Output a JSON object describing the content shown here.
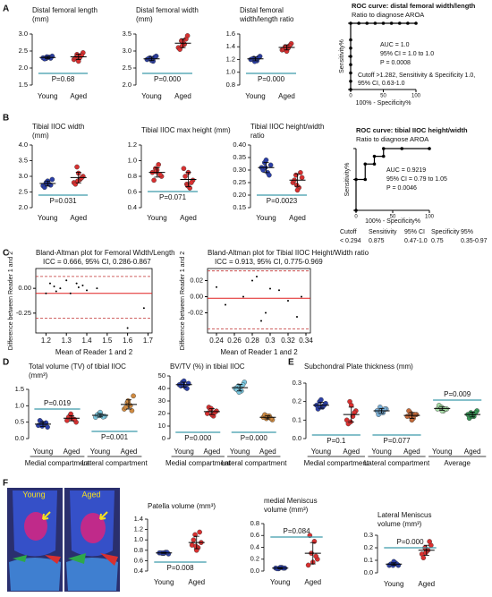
{
  "panel_labels": [
    "A",
    "B",
    "C",
    "D",
    "E",
    "F"
  ],
  "image": {
    "labels": [
      "Young",
      "Aged"
    ]
  },
  "chart_data": [
    {
      "type": "dotplot",
      "title": [
        "Distal femoral length",
        "(mm)"
      ],
      "ylim": [
        1.5,
        3
      ],
      "yticks": [
        1.5,
        {
          "value": 2,
          "label": "2.0"
        },
        2.5,
        {
          "value": 3,
          "label": "3.0"
        }
      ],
      "groups": [
        {
          "name": "Young",
          "color": "#2b3fa8",
          "values": [
            2.3,
            2.28,
            2.32,
            2.35,
            2.27,
            2.31,
            2.29,
            2.33
          ],
          "mean": 2.31,
          "sd": 0.03
        },
        {
          "name": "Aged",
          "color": "#d93030",
          "values": [
            2.25,
            2.4,
            2.32,
            2.45,
            2.3,
            2.2,
            2.38,
            2.35
          ],
          "mean": 2.33,
          "sd": 0.08
        }
      ],
      "p_values": [
        "P=0.68"
      ]
    },
    {
      "type": "dotplot",
      "title": [
        "Distal femoral width",
        "(mm)"
      ],
      "ylim": [
        2,
        3.5
      ],
      "yticks": [
        {
          "value": 2,
          "label": "2.0"
        },
        2.5,
        {
          "value": 3,
          "label": "3.0"
        },
        3.5
      ],
      "groups": [
        {
          "name": "Young",
          "color": "#2b3fa8",
          "values": [
            2.75,
            2.8,
            2.7,
            2.85,
            2.78,
            2.72,
            2.82,
            2.76
          ],
          "mean": 2.77,
          "sd": 0.05
        },
        {
          "name": "Aged",
          "color": "#d93030",
          "values": [
            3.1,
            3.3,
            3.2,
            3.45,
            3.05,
            3.25,
            3.35,
            3.15
          ],
          "mean": 3.23,
          "sd": 0.13
        }
      ],
      "p_values": [
        "P=0.000"
      ]
    },
    {
      "type": "dotplot",
      "title": [
        "Distal femoral",
        "width/length ratio"
      ],
      "ylim": [
        0.8,
        1.6
      ],
      "yticks": [
        0.8,
        {
          "value": 1,
          "label": "1.0"
        },
        1.2,
        1.4,
        1.6
      ],
      "groups": [
        {
          "name": "Young",
          "color": "#2b3fa8",
          "values": [
            1.2,
            1.22,
            1.18,
            1.25,
            1.21,
            1.19,
            1.23,
            1.17
          ],
          "mean": 1.21,
          "sd": 0.03
        },
        {
          "name": "Aged",
          "color": "#d93030",
          "values": [
            1.35,
            1.4,
            1.38,
            1.45,
            1.36,
            1.33,
            1.42,
            1.39
          ],
          "mean": 1.39,
          "sd": 0.04
        }
      ],
      "p_values": [
        "P=0.000"
      ]
    },
    {
      "type": "roc",
      "title": [
        "ROC curve: distal femoral width/length",
        "Ratio to diagnose AROA"
      ],
      "ylabel": "Sensitivity%",
      "xlabel": "100% - Specificity%",
      "xlim": [
        0,
        100
      ],
      "ylim": [
        0,
        100
      ],
      "xticks": [
        0,
        50,
        100
      ],
      "yticks": [
        0,
        50,
        100
      ],
      "x": [
        0,
        0,
        0,
        0,
        0,
        0,
        0,
        0,
        12.5,
        25,
        37.5,
        50,
        62.5,
        75,
        87.5,
        100
      ],
      "y": [
        0,
        12.5,
        25,
        37.5,
        50,
        62.5,
        75,
        100,
        100,
        100,
        100,
        100,
        100,
        100,
        100,
        100
      ],
      "annotations": [
        "AUC = 1.0",
        "95% CI = 1.0 to 1.0",
        "P = 0.0008",
        "Cutoff >1.282,  Sensitivity & Specificity 1.0,",
        "95% CI, 0.63-1.0"
      ]
    },
    {
      "type": "dotplot",
      "title": [
        "Tibial IIOC width",
        "(mm)"
      ],
      "ylim": [
        2,
        4
      ],
      "yticks": [
        {
          "value": 2,
          "label": "2.0"
        },
        2.5,
        {
          "value": 3,
          "label": "3.0"
        },
        3.5,
        {
          "value": 4,
          "label": "4.0"
        }
      ],
      "groups": [
        {
          "name": "Young",
          "color": "#2b3fa8",
          "values": [
            2.7,
            2.8,
            2.75,
            2.9,
            2.65,
            2.85,
            2.72,
            2.78
          ],
          "mean": 2.77,
          "sd": 0.08
        },
        {
          "name": "Aged",
          "color": "#d93030",
          "values": [
            2.8,
            3.3,
            2.9,
            3.0,
            2.75,
            3.1,
            2.95,
            2.85
          ],
          "mean": 2.96,
          "sd": 0.17
        }
      ],
      "p_values": [
        "P=0.031"
      ]
    },
    {
      "type": "dotplot",
      "title": [
        "Tibial IIOC max height (mm)"
      ],
      "ylim": [
        0.4,
        1.2
      ],
      "yticks": [
        0.4,
        0.6,
        0.8,
        {
          "value": 1,
          "label": "1.0"
        },
        1.2
      ],
      "groups": [
        {
          "name": "Young",
          "color": "#d93030",
          "values": [
            0.85,
            0.9,
            0.95,
            0.8,
            0.75,
            0.88,
            0.82,
            0.86
          ],
          "mean": 0.85,
          "sd": 0.06
        },
        {
          "name": "Aged",
          "color": "#d93030",
          "values": [
            0.9,
            0.7,
            0.65,
            0.75,
            0.8,
            0.85,
            0.72,
            0.68
          ],
          "mean": 0.76,
          "sd": 0.09
        }
      ],
      "p_values": [
        "P=0.071"
      ]
    },
    {
      "type": "dotplot",
      "title": [
        "Tibial IIOC height/width",
        "ratio"
      ],
      "ylim": [
        0.15,
        0.4
      ],
      "yticks": [
        0.15,
        {
          "value": 0.2,
          "label": "0.20"
        },
        0.25,
        {
          "value": 0.3,
          "label": "0.30"
        },
        0.35,
        {
          "value": 0.4,
          "label": "0.40"
        }
      ],
      "groups": [
        {
          "name": "Young",
          "color": "#2b3fa8",
          "values": [
            0.31,
            0.33,
            0.29,
            0.32,
            0.3,
            0.34,
            0.28,
            0.31
          ],
          "mean": 0.31,
          "sd": 0.02
        },
        {
          "name": "Aged",
          "color": "#d93030",
          "values": [
            0.25,
            0.28,
            0.23,
            0.27,
            0.26,
            0.22,
            0.29,
            0.24
          ],
          "mean": 0.26,
          "sd": 0.025
        }
      ],
      "p_values": [
        "P=0.0023"
      ]
    },
    {
      "type": "roc",
      "title": [
        "ROC curve: tibial IIOC height/width",
        "Ratio to diagnose AROA"
      ],
      "ylabel": "Sensitivity%",
      "xlabel": "100% - Specificity%",
      "xlim": [
        0,
        100
      ],
      "ylim": [
        0,
        100
      ],
      "xticks": [
        0,
        50,
        100
      ],
      "yticks": [
        0,
        50,
        100
      ],
      "x": [
        0,
        0,
        12.5,
        12.5,
        25,
        25,
        37.5,
        37.5,
        62.5,
        100
      ],
      "y": [
        0,
        50,
        50,
        75,
        75,
        87.5,
        87.5,
        100,
        100,
        100
      ],
      "annotations": [
        "AUC = 0.9219",
        "95% CI = 0.79 to 1.05",
        "P = 0.0046"
      ],
      "table": {
        "header": [
          "Cutoff",
          "Sensitivity",
          "95% CI",
          "Specificity",
          "95%"
        ],
        "row": [
          "< 0.294",
          "0.875",
          "0.47-1.0",
          "0.75",
          "0.35-0.97"
        ]
      }
    },
    {
      "type": "bland_altman",
      "title": "Bland-Altman plot for Femoral Width/Length",
      "subtitle": "ICC = 0.666, 95% CI, 0.286-0.867",
      "xlabel": "Mean of Reader 1 and 2",
      "ylabel": "Difference between Reader 1 and 2",
      "xlim": [
        1.15,
        1.72
      ],
      "ylim": [
        -0.45,
        0.2
      ],
      "xticks": [
        1.2,
        1.3,
        1.4,
        1.5,
        1.6,
        1.7
      ],
      "yticks": [
        {
          "value": 0,
          "label": "0.00"
        },
        -0.25
      ],
      "x": [
        1.2,
        1.22,
        1.24,
        1.25,
        1.27,
        1.3,
        1.32,
        1.35,
        1.36,
        1.38,
        1.4,
        1.45,
        1.6,
        1.68
      ],
      "y": [
        -0.05,
        0.05,
        0.02,
        -0.03,
        0,
        0.08,
        -0.05,
        0.05,
        0.01,
        0.03,
        -0.02,
        0,
        -0.4,
        -0.2
      ],
      "bias": -0.05,
      "upper_limit": 0.12,
      "lower_limit": -0.3
    },
    {
      "type": "bland_altman",
      "title": "Bland-Altman plot for Tibial IIOC Height/Width ratio",
      "subtitle": "ICC = 0.913, 95% CI, 0.775-0.969",
      "xlabel": "Mean of Reader 1 and 2",
      "ylabel": "Difference between Reader 1 and 2",
      "xlim": [
        0.23,
        0.345
      ],
      "ylim": [
        -0.045,
        0.035
      ],
      "xticks": [
        0.24,
        0.26,
        0.28,
        0.3,
        0.32,
        0.34
      ],
      "yticks": [
        0.02,
        {
          "value": 0,
          "label": "0.00"
        },
        -0.02
      ],
      "x": [
        0.24,
        0.25,
        0.27,
        0.28,
        0.285,
        0.29,
        0.295,
        0.3,
        0.31,
        0.32,
        0.33,
        0.335
      ],
      "y": [
        0.012,
        -0.01,
        0,
        0.02,
        0.025,
        -0.03,
        -0.02,
        0.01,
        0.008,
        -0.005,
        -0.025,
        0
      ],
      "bias": -0.002,
      "upper_limit": 0.032,
      "lower_limit": -0.04
    },
    {
      "type": "dotplot",
      "title": [
        "Total volume (TV) of tibial IIOC",
        "(mm³)"
      ],
      "ylim": [
        0,
        1.5
      ],
      "yticks": [
        {
          "value": 0,
          "label": "0.0"
        },
        0.5,
        {
          "value": 1,
          "label": "1.0"
        },
        1.5
      ],
      "groups": [
        {
          "name": "Young",
          "color": "#2b3fa8",
          "values": [
            0.4,
            0.5,
            0.45,
            0.35,
            0.55,
            0.42,
            0.48,
            0.38
          ],
          "mean": 0.44,
          "sd": 0.07
        },
        {
          "name": "Aged",
          "color": "#d93030",
          "values": [
            0.55,
            0.7,
            0.6,
            0.5,
            0.65,
            0.62,
            0.58,
            0.75
          ],
          "mean": 0.62,
          "sd": 0.08
        },
        {
          "name": "Young",
          "color": "#7cc8e0",
          "values": [
            0.65,
            0.75,
            0.7,
            0.68,
            0.72,
            0.8,
            0.66,
            0.7
          ],
          "mean": 0.71,
          "sd": 0.05
        },
        {
          "name": "Aged",
          "color": "#d08a40",
          "values": [
            0.9,
            1.1,
            1.0,
            1.3,
            0.95,
            1.05,
            0.85,
            1.15
          ],
          "mean": 1.04,
          "sd": 0.14
        }
      ],
      "p_values": [
        "P=0.019",
        "P=0.001"
      ],
      "group_labels": [
        "Medial compartment",
        "Lateral compartment"
      ]
    },
    {
      "type": "dotplot",
      "title": [
        "BV/TV (%) in tibial IIOC"
      ],
      "ylim": [
        0,
        50
      ],
      "yticks": [
        0,
        10,
        20,
        30,
        40,
        50
      ],
      "groups": [
        {
          "name": "Young",
          "color": "#2b3fa8",
          "values": [
            43,
            45,
            41,
            44,
            42,
            46,
            40,
            43
          ],
          "mean": 43,
          "sd": 2
        },
        {
          "name": "Aged",
          "color": "#d93030",
          "values": [
            20,
            23,
            18,
            22,
            25,
            19,
            21,
            24
          ],
          "mean": 21.5,
          "sd": 2.4
        },
        {
          "name": "Young",
          "color": "#7cc8e0",
          "values": [
            40,
            42,
            38,
            45,
            39,
            41,
            43,
            37
          ],
          "mean": 40.6,
          "sd": 2.6
        },
        {
          "name": "Aged",
          "color": "#d08a40",
          "values": [
            17,
            16,
            18,
            15,
            19,
            17,
            16,
            18
          ],
          "mean": 17,
          "sd": 1.3
        }
      ],
      "p_values": [
        "P=0.000",
        "P=0.000"
      ],
      "group_labels": [
        "Medial compartment",
        "Lateral compartment"
      ]
    },
    {
      "type": "dotplot",
      "title": [
        "Subchondral Plate thickness (mm)"
      ],
      "ylim": [
        0,
        0.3
      ],
      "yticks": [
        {
          "value": 0,
          "label": "0.0"
        },
        0.1,
        0.2,
        0.3
      ],
      "groups": [
        {
          "name": "Young",
          "color": "#2b3fa8",
          "values": [
            0.18,
            0.2,
            0.17,
            0.19,
            0.16,
            0.21,
            0.18,
            0.17
          ],
          "mean": 0.18,
          "sd": 0.016
        },
        {
          "name": "Aged",
          "color": "#d93030",
          "values": [
            0.1,
            0.2,
            0.12,
            0.15,
            0.08,
            0.18,
            0.14,
            0.09
          ],
          "mean": 0.13,
          "sd": 0.04
        },
        {
          "name": "Young",
          "color": "#7ab0d8",
          "values": [
            0.15,
            0.17,
            0.14,
            0.16,
            0.13,
            0.15,
            0.16,
            0.14
          ],
          "mean": 0.15,
          "sd": 0.013
        },
        {
          "name": "Aged",
          "color": "#c46a3a",
          "values": [
            0.12,
            0.14,
            0.11,
            0.13,
            0.15,
            0.1,
            0.13,
            0.12
          ],
          "mean": 0.125,
          "sd": 0.016
        },
        {
          "name": "Young",
          "color": "#a6dca6",
          "values": [
            0.16,
            0.17,
            0.15,
            0.16,
            0.18,
            0.15,
            0.16,
            0.17
          ],
          "mean": 0.163,
          "sd": 0.01
        },
        {
          "name": "Aged",
          "color": "#3a9a5a",
          "values": [
            0.13,
            0.14,
            0.12,
            0.15,
            0.11,
            0.13,
            0.14,
            0.12
          ],
          "mean": 0.13,
          "sd": 0.013
        }
      ],
      "p_values": [
        "P=0.1",
        "P=0.077",
        "P=0.009"
      ],
      "group_labels": [
        "Medial compartment",
        "Lateral compartment",
        "Average"
      ]
    },
    {
      "type": "dotplot",
      "title": [
        "Patella volume (mm³)"
      ],
      "ylim": [
        0.4,
        1.4
      ],
      "yticks": [
        0.4,
        0.6,
        0.8,
        {
          "value": 1,
          "label": "1.0"
        },
        1.2,
        1.4
      ],
      "groups": [
        {
          "name": "Young",
          "color": "#2b3fa8",
          "values": [
            0.75,
            0.74,
            0.76,
            0.73,
            0.75,
            0.74,
            0.76,
            0.75
          ],
          "mean": 0.75,
          "sd": 0.01
        },
        {
          "name": "Aged",
          "color": "#d93030",
          "values": [
            0.9,
            1.1,
            0.85,
            0.95,
            1.0,
            0.8,
            1.15,
            0.88
          ],
          "mean": 0.95,
          "sd": 0.12
        }
      ],
      "p_values": [
        "P=0.008"
      ]
    },
    {
      "type": "dotplot",
      "title": [
        "medial Meniscus",
        "volume (mm³)"
      ],
      "ylim": [
        0,
        0.8
      ],
      "yticks": [
        {
          "value": 0,
          "label": "0.0"
        },
        0.2,
        0.4,
        0.6,
        0.8
      ],
      "groups": [
        {
          "name": "Young",
          "color": "#2b3fa8",
          "values": [
            0.05,
            0.04,
            0.06,
            0.05,
            0.04,
            0.06,
            0.05
          ],
          "mean": 0.05,
          "sd": 0.01
        },
        {
          "name": "Aged",
          "color": "#d93030",
          "values": [
            0.1,
            0.3,
            0.5,
            0.2,
            0.6,
            0.15,
            0.25
          ],
          "mean": 0.3,
          "sd": 0.18
        }
      ],
      "p_values": [
        "P=0.084"
      ]
    },
    {
      "type": "dotplot",
      "title": [
        "Lateral Meniscus",
        "volume (mm³)"
      ],
      "ylim": [
        0,
        0.3
      ],
      "yticks": [
        {
          "value": 0,
          "label": "0.0"
        },
        0.1,
        0.2,
        0.3
      ],
      "groups": [
        {
          "name": "Young",
          "color": "#2b3fa8",
          "values": [
            0.06,
            0.07,
            0.08,
            0.06,
            0.07,
            0.09,
            0.07,
            0.06
          ],
          "mean": 0.07,
          "sd": 0.01
        },
        {
          "name": "Aged",
          "color": "#d93030",
          "values": [
            0.15,
            0.2,
            0.18,
            0.22,
            0.12,
            0.17,
            0.25,
            0.16
          ],
          "mean": 0.18,
          "sd": 0.04
        }
      ],
      "p_values": [
        "P=0.000"
      ]
    }
  ]
}
